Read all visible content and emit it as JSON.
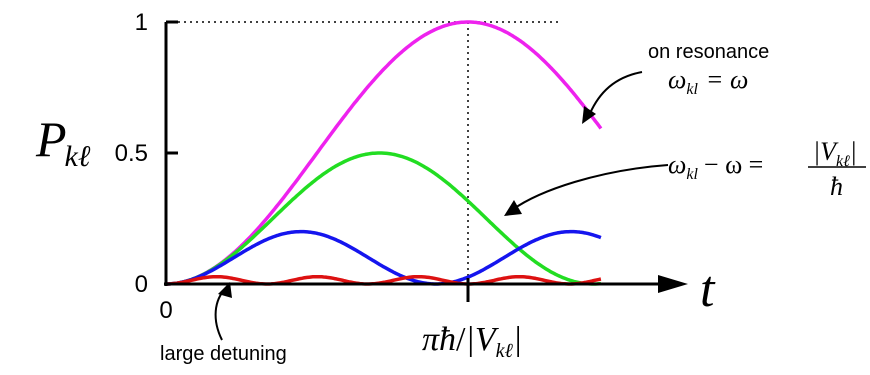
{
  "chart_data": {
    "type": "line",
    "xlabel": "t",
    "ylabel_main": "P",
    "ylabel_sub": "kℓ",
    "ylim": [
      0,
      1
    ],
    "xlim": [
      0,
      1.44
    ],
    "yticks": [
      {
        "value": 0,
        "label": "0"
      },
      {
        "value": 0.5,
        "label": "0.5"
      },
      {
        "value": 1,
        "label": "1"
      }
    ],
    "xticks": [
      {
        "value": 0,
        "label": "0"
      },
      {
        "value": 1,
        "label": "πħ/|V_kℓ|"
      }
    ],
    "grid": false,
    "reference_lines": [
      {
        "orientation": "horizontal",
        "value": 1,
        "style": "dotted"
      },
      {
        "orientation": "vertical",
        "value": 1,
        "style": "dotted"
      }
    ],
    "series": [
      {
        "key": "on_resonance",
        "color": "#ee22ee",
        "detuning_ratio": 0,
        "x_end": 1.44
      },
      {
        "key": "detuned",
        "color": "#22dd22",
        "detuning_ratio": 1,
        "x_end": 1.44
      },
      {
        "key": "more_detuned",
        "color": "#1515ee",
        "detuning_ratio": 2,
        "x_end": 1.44
      },
      {
        "key": "large_detuning",
        "color": "#dd1111",
        "detuning_ratio": 5.9,
        "x_end": 1.44
      }
    ],
    "annotations": {
      "on_resonance": {
        "text": "on resonance",
        "equation_lhs": "ω",
        "equation_lhs_sub": "kl",
        "equation_rhs": "= ω"
      },
      "detuned": {
        "lhs": "ω",
        "lhs_sub": "kl",
        "lhs_rest": "− ω =",
        "numerator": "|V",
        "numerator_sub": "kℓ",
        "numerator_end": "|",
        "denominator": "ħ"
      },
      "large_detuning": {
        "text": "large detuning"
      }
    },
    "x_tick_label_parts": {
      "pi": "π",
      "hbar": "ħ",
      "slash": "/",
      "bar_open": "|V",
      "sub": "kℓ",
      "bar_close": "|"
    }
  }
}
